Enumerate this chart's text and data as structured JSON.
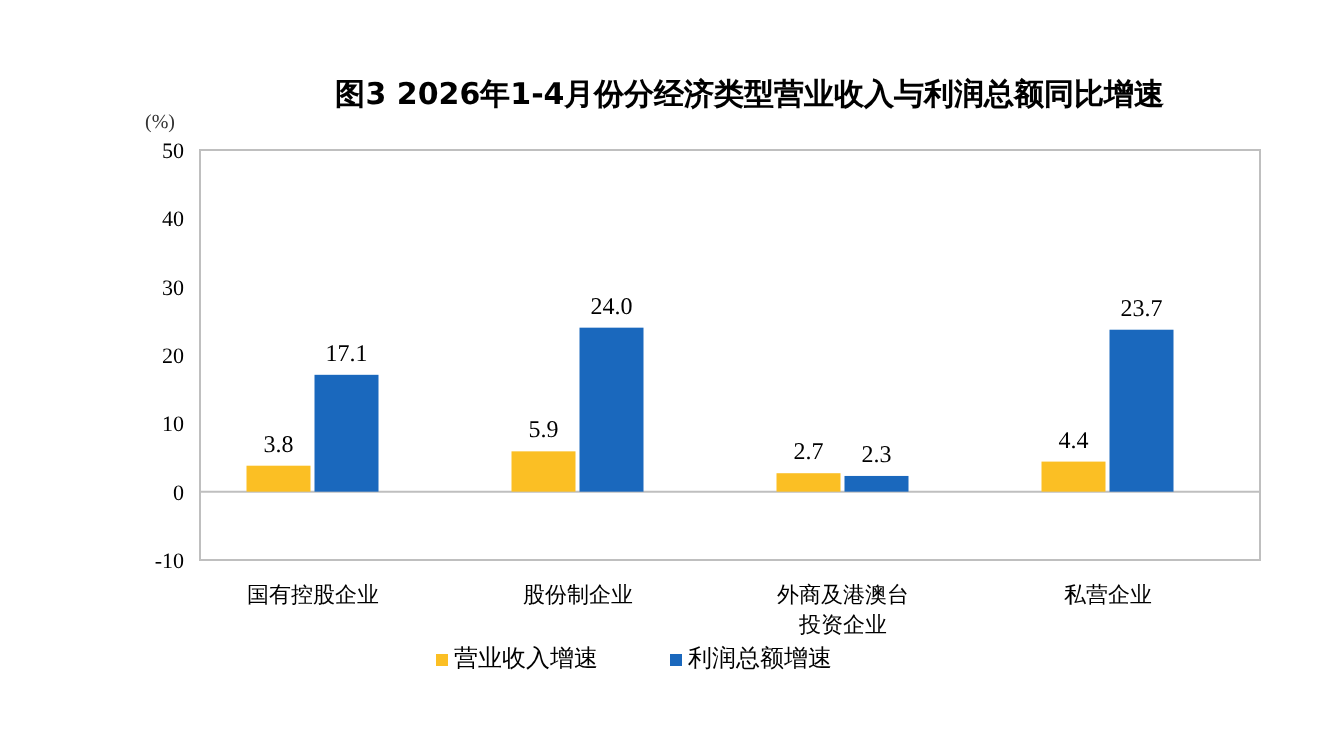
{
  "chart_data": {
    "type": "bar",
    "title": "图3  2026年1-4月份分经济类型营业收入与利润总额同比增速",
    "ylabel": "(%)",
    "categories": [
      "国有控股企业",
      "股份制企业",
      "外商及港澳台投资企业",
      "私营企业"
    ],
    "series": [
      {
        "name": "营业收入增速",
        "color": "#fbbf24",
        "values": [
          3.8,
          5.9,
          2.7,
          4.4
        ],
        "value_labels": [
          "3.8",
          "5.9",
          "2.7",
          "4.4"
        ]
      },
      {
        "name": "利润总额增速",
        "color": "#1a68bd",
        "values": [
          17.1,
          24.0,
          2.3,
          23.7
        ],
        "value_labels": [
          "17.1",
          "24.0",
          "2.3",
          "23.7"
        ]
      }
    ],
    "ylim": [
      -10,
      50
    ],
    "yticks": [
      -10,
      0,
      10,
      20,
      30,
      40,
      50
    ],
    "legend": "bottom"
  }
}
